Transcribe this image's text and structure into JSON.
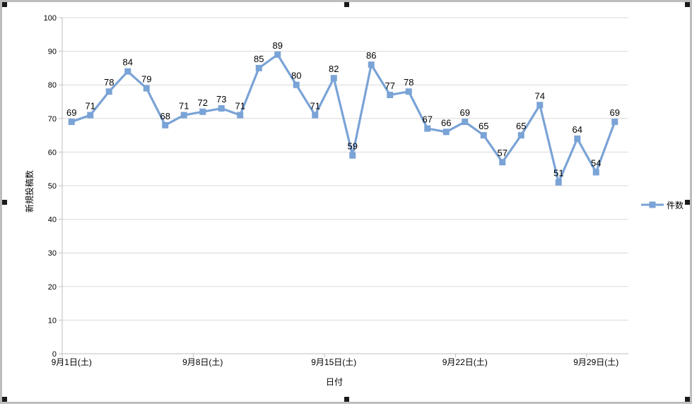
{
  "chart_data": {
    "type": "line",
    "xlabel": "日付",
    "ylabel": "新規投稿数",
    "ylim": [
      0,
      100
    ],
    "y_tick_step": 10,
    "grid": true,
    "legend_position": "right",
    "x_tick_labels": [
      "9月1日(土)",
      "9月8日(土)",
      "9月15日(土)",
      "9月22日(土)",
      "9月29日(土)"
    ],
    "x_tick_indices": [
      0,
      7,
      14,
      21,
      28
    ],
    "x_boundary_tick_interval": 7,
    "series": [
      {
        "name": "件数",
        "values": [
          69,
          71,
          78,
          84,
          79,
          68,
          71,
          72,
          73,
          71,
          85,
          89,
          80,
          71,
          82,
          59,
          86,
          77,
          78,
          67,
          66,
          69,
          65,
          57,
          65,
          74,
          51,
          64,
          54,
          69
        ]
      }
    ],
    "colors": {
      "series": "#7AA3D6",
      "gridline": "#D9D9D9",
      "axis": "#BFBFBF",
      "text": "#000000"
    }
  }
}
